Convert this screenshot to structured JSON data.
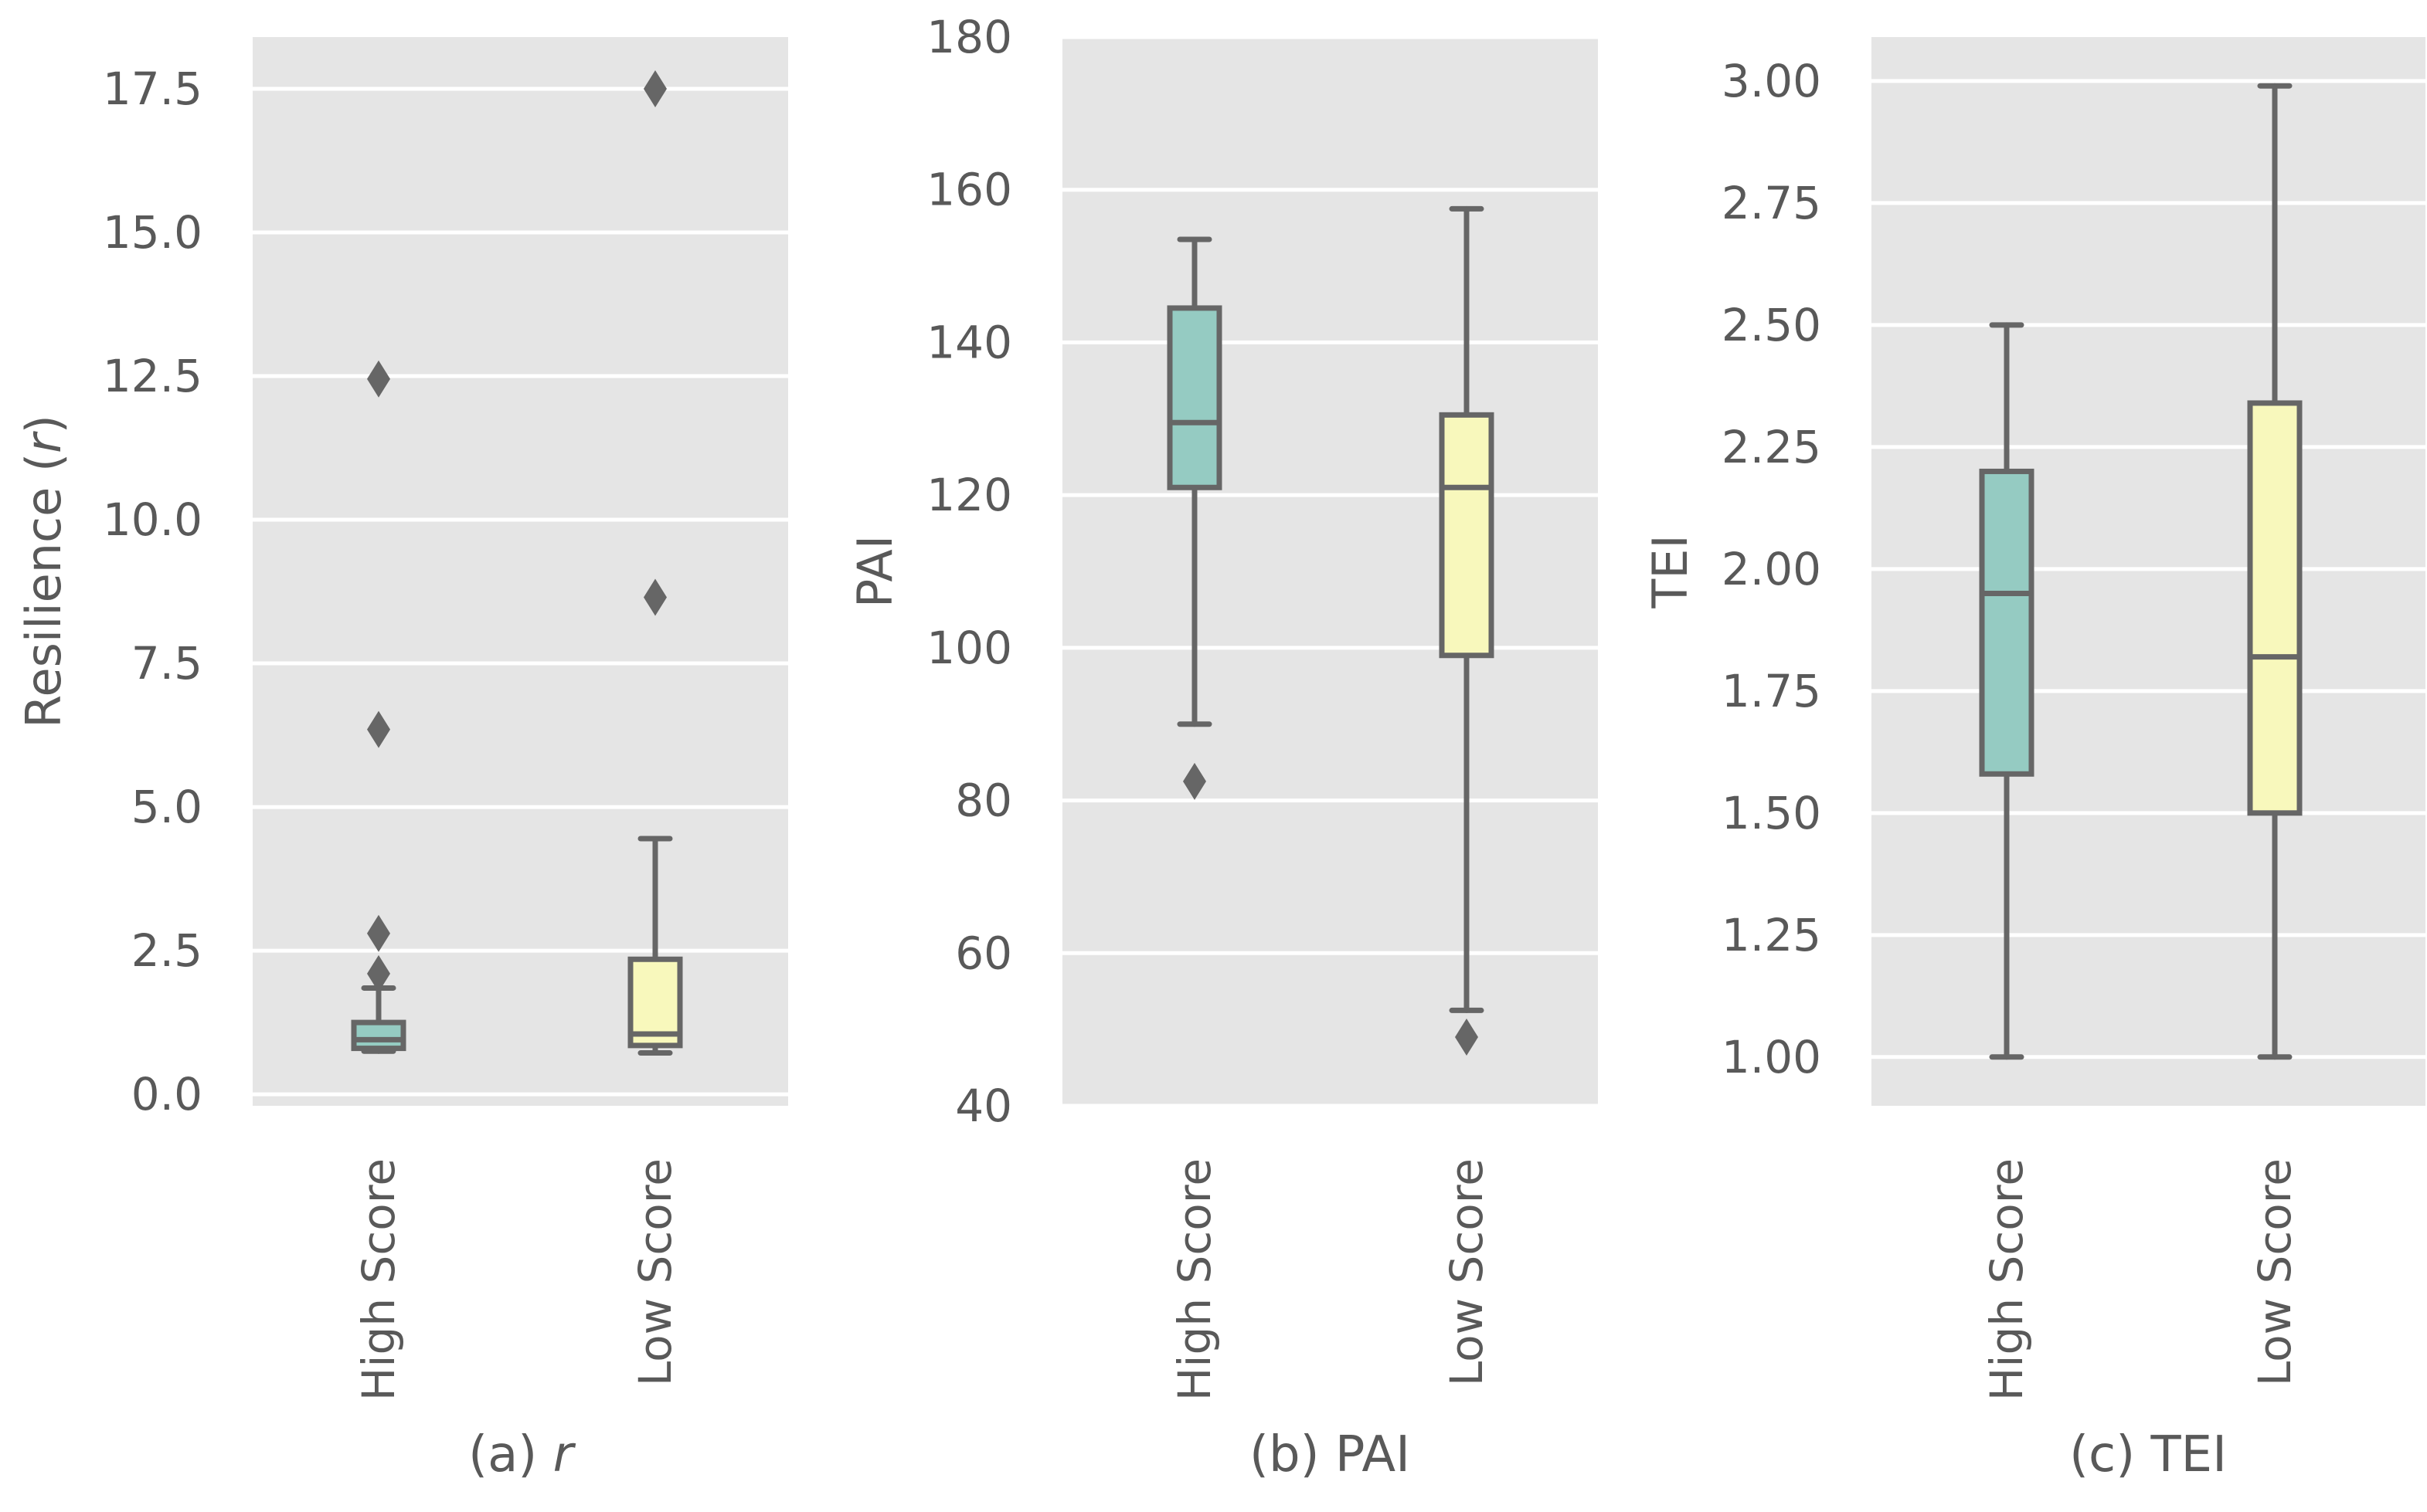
{
  "colors": {
    "panel_bg": "#e5e5e5",
    "grid": "#ffffff",
    "box_line": "#666666",
    "high_fill": "#95cbc2",
    "low_fill": "#f8f8bc",
    "text": "#595959"
  },
  "chart_data": [
    {
      "type": "box",
      "id": "r",
      "caption": "(a) r",
      "caption_prefix": "(a) ",
      "caption_var": "r",
      "ylabel": "Resilience (r)",
      "ylabel_prefix": "Resilience (",
      "ylabel_var": "r",
      "ylabel_suffix": ")",
      "ylim": [
        -0.2,
        18.4
      ],
      "yticks": [
        0.0,
        2.5,
        5.0,
        7.5,
        10.0,
        12.5,
        15.0,
        17.5
      ],
      "ytick_labels": [
        "0.0",
        "2.5",
        "5.0",
        "7.5",
        "10.0",
        "12.5",
        "15.0",
        "17.5"
      ],
      "categories": [
        "High Score",
        "Low Score"
      ],
      "series": [
        {
          "name": "High Score",
          "whisker_low": 0.75,
          "q1": 0.8,
          "median": 0.95,
          "q3": 1.25,
          "whisker_high": 1.85,
          "outliers": [
            2.1,
            2.8,
            6.35,
            12.45
          ]
        },
        {
          "name": "Low Score",
          "whisker_low": 0.72,
          "q1": 0.85,
          "median": 1.05,
          "q3": 2.35,
          "whisker_high": 4.45,
          "outliers": [
            8.65,
            17.5
          ]
        }
      ]
    },
    {
      "type": "box",
      "id": "pai",
      "caption": "(b) PAI",
      "caption_prefix": "(b) PAI",
      "caption_var": "",
      "ylabel": "PAI",
      "ylabel_prefix": "PAI",
      "ylabel_var": "",
      "ylabel_suffix": "",
      "ylim": [
        40,
        180
      ],
      "yticks": [
        40,
        60,
        80,
        100,
        120,
        140,
        160,
        180
      ],
      "ytick_labels": [
        "40",
        "60",
        "80",
        "100",
        "120",
        "140",
        "160",
        "180"
      ],
      "categories": [
        "High Score",
        "Low Score"
      ],
      "series": [
        {
          "name": "High Score",
          "whisker_low": 90,
          "q1": 121,
          "median": 129.5,
          "q3": 144.5,
          "whisker_high": 153.5,
          "outliers": [
            82.5
          ]
        },
        {
          "name": "Low Score",
          "whisker_low": 52.5,
          "q1": 99,
          "median": 121,
          "q3": 130.5,
          "whisker_high": 157.5,
          "outliers": [
            49
          ]
        }
      ]
    },
    {
      "type": "box",
      "id": "tei",
      "caption": "(c) TEI",
      "caption_prefix": "(c) TEI",
      "caption_var": "",
      "ylabel": "TEI",
      "ylabel_prefix": "TEI",
      "ylabel_var": "",
      "ylabel_suffix": "",
      "ylim": [
        0.9,
        3.09
      ],
      "yticks": [
        1.0,
        1.25,
        1.5,
        1.75,
        2.0,
        2.25,
        2.5,
        2.75,
        3.0
      ],
      "ytick_labels": [
        "1.00",
        "1.25",
        "1.50",
        "1.75",
        "2.00",
        "2.25",
        "2.50",
        "2.75",
        "3.00"
      ],
      "categories": [
        "High Score",
        "Low Score"
      ],
      "series": [
        {
          "name": "High Score",
          "whisker_low": 1.0,
          "q1": 1.58,
          "median": 1.95,
          "q3": 2.2,
          "whisker_high": 2.5,
          "outliers": []
        },
        {
          "name": "Low Score",
          "whisker_low": 1.0,
          "q1": 1.5,
          "median": 1.82,
          "q3": 2.34,
          "whisker_high": 2.99,
          "outliers": []
        }
      ]
    }
  ]
}
